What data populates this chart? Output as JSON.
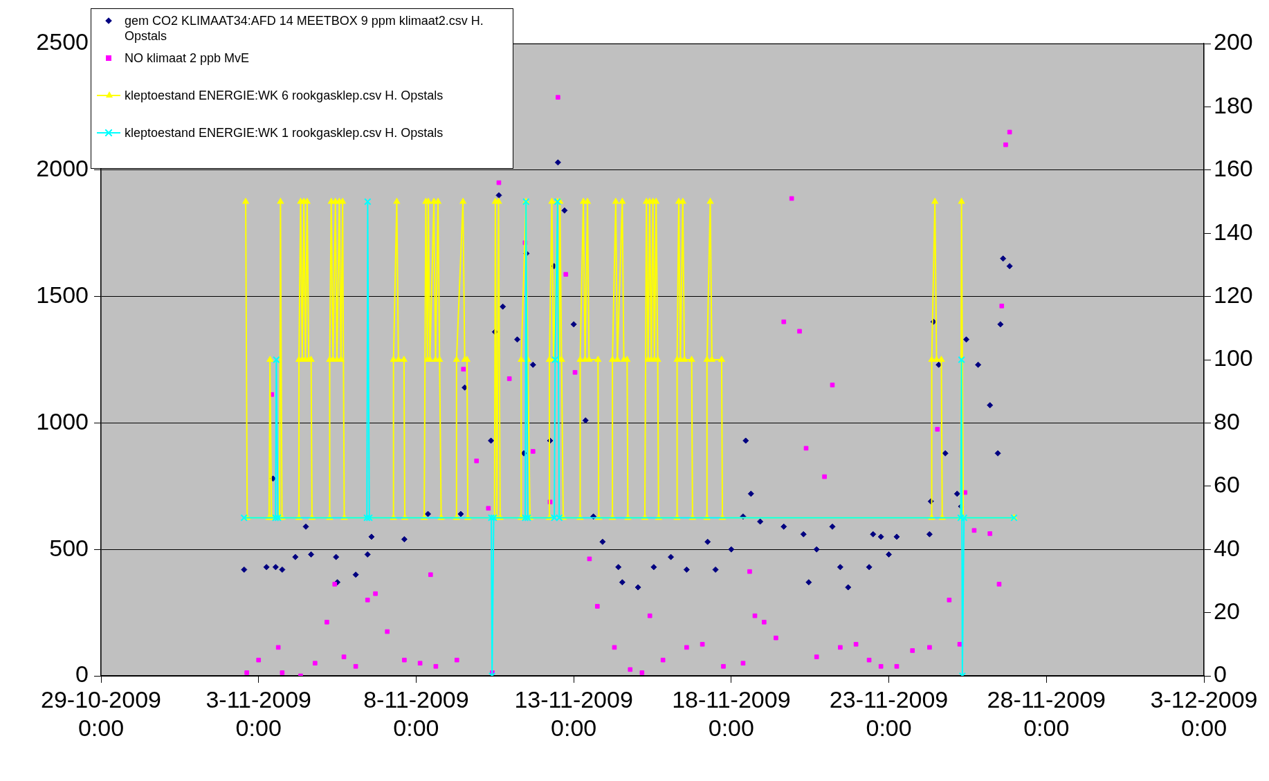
{
  "chart_data": {
    "type": "scatter",
    "legend": "top left",
    "grid": "y",
    "xlim": [
      "2009-10-29T00:00",
      "2009-12-03T00:00"
    ],
    "xticks": [
      {
        "value": "2009-10-29T00:00",
        "label": "29-10-2009 0:00"
      },
      {
        "value": "2009-11-03T00:00",
        "label": "3-11-2009 0:00"
      },
      {
        "value": "2009-11-08T00:00",
        "label": "8-11-2009 0:00"
      },
      {
        "value": "2009-11-13T00:00",
        "label": "13-11-2009 0:00"
      },
      {
        "value": "2009-11-18T00:00",
        "label": "18-11-2009 0:00"
      },
      {
        "value": "2009-11-23T00:00",
        "label": "23-11-2009 0:00"
      },
      {
        "value": "2009-11-28T00:00",
        "label": "28-11-2009 0:00"
      },
      {
        "value": "2009-12-03T00:00",
        "label": "3-12-2009 0:00"
      }
    ],
    "ylim": [
      0,
      2500
    ],
    "yticks": [
      0,
      500,
      1000,
      1500,
      2000,
      2500
    ],
    "y2lim": [
      0,
      200
    ],
    "y2ticks": [
      0,
      20,
      40,
      60,
      80,
      100,
      120,
      140,
      160,
      180,
      200
    ],
    "series": [
      {
        "name": "gem CO2 KLIMAAT34:AFD 14 MEETBOX 9 ppm klimaat2.csv H. Opstals",
        "color": "#000080",
        "marker": "diamond",
        "x": [
          "2009-11-02T13:00",
          "2009-11-03T06:00",
          "2009-11-03T11:00",
          "2009-11-03T13:00",
          "2009-11-03T18:00",
          "2009-11-04T04:00",
          "2009-11-04T12:00",
          "2009-11-04T16:00",
          "2009-11-05T11:00",
          "2009-11-05T12:00",
          "2009-11-06T02:00",
          "2009-11-06T11:00",
          "2009-11-06T14:00",
          "2009-11-07T15:00",
          "2009-11-08T09:00",
          "2009-11-09T10:00",
          "2009-11-09T13:00",
          "2009-11-10T09:00",
          "2009-11-10T12:00",
          "2009-11-10T15:00",
          "2009-11-10T18:00",
          "2009-11-11T05:00",
          "2009-11-11T10:00",
          "2009-11-11T12:00",
          "2009-11-11T17:00",
          "2009-11-12T06:00",
          "2009-11-12T09:00",
          "2009-11-12T12:00",
          "2009-11-12T17:00",
          "2009-11-13T00:00",
          "2009-11-13T09:00",
          "2009-11-13T15:00",
          "2009-11-13T22:00",
          "2009-11-14T10:00",
          "2009-11-14T13:00",
          "2009-11-15T01:00",
          "2009-11-15T13:00",
          "2009-11-16T02:00",
          "2009-11-16T14:00",
          "2009-11-17T06:00",
          "2009-11-17T12:00",
          "2009-11-18T00:00",
          "2009-11-18T09:00",
          "2009-11-18T11:00",
          "2009-11-18T15:00",
          "2009-11-18T22:00",
          "2009-11-19T16:00",
          "2009-11-20T07:00",
          "2009-11-20T11:00",
          "2009-11-20T17:00",
          "2009-11-21T05:00",
          "2009-11-21T11:00",
          "2009-11-21T17:00",
          "2009-11-22T09:00",
          "2009-11-22T12:00",
          "2009-11-22T18:00",
          "2009-11-23T00:00",
          "2009-11-23T06:00",
          "2009-11-24T07:00",
          "2009-11-24T08:00",
          "2009-11-24T10:00",
          "2009-11-24T14:00",
          "2009-11-24T19:00",
          "2009-11-25T04:00",
          "2009-11-25T07:00",
          "2009-11-25T11:00",
          "2009-11-25T20:00",
          "2009-11-26T05:00",
          "2009-11-26T11:00",
          "2009-11-26T13:00",
          "2009-11-26T15:00",
          "2009-11-26T20:00"
        ],
        "values": [
          420,
          430,
          780,
          430,
          420,
          470,
          590,
          480,
          470,
          370,
          400,
          480,
          550,
          540,
          640,
          640,
          1140,
          930,
          1360,
          1900,
          1460,
          1330,
          880,
          1670,
          1230,
          930,
          1620,
          2030,
          1840,
          1390,
          1010,
          630,
          530,
          430,
          370,
          350,
          430,
          470,
          420,
          530,
          420,
          500,
          630,
          930,
          720,
          610,
          590,
          560,
          370,
          500,
          590,
          430,
          350,
          430,
          560,
          550,
          480,
          550,
          560,
          690,
          1400,
          1230,
          880,
          720,
          670,
          1330,
          1230,
          1070,
          880,
          1390,
          1650,
          1620
        ]
      },
      {
        "name": "NO klimaat 2 ppb MvE",
        "color": "#ff00ff",
        "type": "scatter",
        "marker": "square",
        "axis": "y2",
        "x": [
          "2009-11-02T15:00",
          "2009-11-03T00:00",
          "2009-11-03T10:00",
          "2009-11-03T15:00",
          "2009-11-03T18:00",
          "2009-11-04T08:00",
          "2009-11-04T19:00",
          "2009-11-05T04:00",
          "2009-11-05T10:00",
          "2009-11-05T17:00",
          "2009-11-06T02:00",
          "2009-11-06T11:00",
          "2009-11-06T17:00",
          "2009-11-07T02:00",
          "2009-11-07T15:00",
          "2009-11-08T03:00",
          "2009-11-08T11:00",
          "2009-11-08T15:00",
          "2009-11-09T07:00",
          "2009-11-09T12:00",
          "2009-11-09T22:00",
          "2009-11-10T07:00",
          "2009-11-10T10:00",
          "2009-11-10T15:00",
          "2009-11-10T23:00",
          "2009-11-11T11:00",
          "2009-11-11T17:00",
          "2009-11-12T06:00",
          "2009-11-12T12:00",
          "2009-11-12T18:00",
          "2009-11-13T01:00",
          "2009-11-13T12:00",
          "2009-11-13T18:00",
          "2009-11-14T07:00",
          "2009-11-14T19:00",
          "2009-11-15T04:00",
          "2009-11-15T10:00",
          "2009-11-15T20:00",
          "2009-11-16T14:00",
          "2009-11-17T02:00",
          "2009-11-17T18:00",
          "2009-11-18T09:00",
          "2009-11-18T14:00",
          "2009-11-18T18:00",
          "2009-11-19T01:00",
          "2009-11-19T10:00",
          "2009-11-19T16:00",
          "2009-11-19T22:00",
          "2009-11-20T04:00",
          "2009-11-20T09:00",
          "2009-11-20T17:00",
          "2009-11-20T23:00",
          "2009-11-21T05:00",
          "2009-11-21T11:00",
          "2009-11-21T23:00",
          "2009-11-22T09:00",
          "2009-11-22T18:00",
          "2009-11-23T06:00",
          "2009-11-23T18:00",
          "2009-11-24T07:00",
          "2009-11-24T13:00",
          "2009-11-24T22:00",
          "2009-11-25T06:00",
          "2009-11-25T10:00",
          "2009-11-25T17:00",
          "2009-11-26T05:00",
          "2009-11-26T12:00",
          "2009-11-26T14:00",
          "2009-11-26T17:00",
          "2009-11-26T20:00"
        ],
        "values": [
          1,
          5,
          89,
          9,
          1,
          0,
          4,
          17,
          29,
          6,
          3,
          24,
          26,
          14,
          5,
          4,
          32,
          3,
          5,
          97,
          68,
          53,
          1,
          156,
          94,
          137,
          71,
          55,
          183,
          127,
          96,
          37,
          22,
          9,
          2,
          1,
          19,
          5,
          9,
          10,
          3,
          4,
          33,
          19,
          17,
          12,
          112,
          151,
          109,
          72,
          6,
          63,
          92,
          9,
          10,
          5,
          3,
          3,
          8,
          9,
          78,
          24,
          10,
          58,
          46,
          45,
          29,
          117,
          168,
          172
        ]
      },
      {
        "name": "kleptoestand ENERGIE:WK 6 rookgasklep.csv H. Opstals",
        "color": "#ffff00",
        "type": "line",
        "marker": "triangle",
        "axis": "y2",
        "x": [
          "2009-11-02T14:10",
          "2009-11-02T15:20",
          "2009-11-03T08:00",
          "2009-11-03T08:40",
          "2009-11-03T09:50",
          "2009-11-03T16:00",
          "2009-11-03T16:40",
          "2009-11-03T17:50",
          "2009-11-04T06:45",
          "2009-11-04T06:45",
          "2009-11-04T08:00",
          "2009-11-04T09:15",
          "2009-11-04T10:30",
          "2009-11-04T11:40",
          "2009-11-04T13:00",
          "2009-11-04T14:10",
          "2009-11-04T16:00",
          "2009-11-04T16:40",
          "2009-11-05T06:10",
          "2009-11-05T06:10",
          "2009-11-05T07:20",
          "2009-11-05T08:40",
          "2009-11-05T10:30",
          "2009-11-05T11:40",
          "2009-11-05T13:30",
          "2009-11-05T14:45",
          "2009-11-05T16:00",
          "2009-11-05T17:15",
          "2009-11-07T06:45",
          "2009-11-07T06:45",
          "2009-11-07T09:15",
          "2009-11-07T10:30",
          "2009-11-07T14:45",
          "2009-11-07T15:20",
          "2009-11-08T06:10",
          "2009-11-08T07:20",
          "2009-11-08T08:40",
          "2009-11-08T09:15",
          "2009-11-08T10:30",
          "2009-11-08T13:30",
          "2009-11-08T14:45",
          "2009-11-08T16:40",
          "2009-11-08T17:50",
          "2009-11-08T19:05",
          "2009-11-09T06:45",
          "2009-11-09T06:45",
          "2009-11-09T11:40",
          "2009-11-09T13:00",
          "2009-11-09T14:45",
          "2009-11-09T15:20",
          "2009-11-10T11:40",
          "2009-11-10T12:20",
          "2009-11-10T13:30",
          "2009-11-10T14:45",
          "2009-11-10T16:00",
          "2009-11-11T08:00",
          "2009-11-11T08:00",
          "2009-11-11T11:40",
          "2009-11-11T13:00",
          "2009-11-11T14:45",
          "2009-11-12T05:30",
          "2009-11-12T05:30",
          "2009-11-12T07:20",
          "2009-11-12T08:40",
          "2009-11-12T11:40",
          "2009-11-12T13:00",
          "2009-11-12T13:30",
          "2009-11-12T14:45",
          "2009-11-12T16:00",
          "2009-11-13T04:55",
          "2009-11-13T04:55",
          "2009-11-13T07:20",
          "2009-11-13T08:40",
          "2009-11-13T10:30",
          "2009-11-13T11:40",
          "2009-11-13T18:30",
          "2009-11-13T19:05",
          "2009-11-14T05:30",
          "2009-11-14T05:30",
          "2009-11-14T08:00",
          "2009-11-14T09:15",
          "2009-11-14T13:00",
          "2009-11-14T14:10",
          "2009-11-14T16:40",
          "2009-11-14T17:15",
          "2009-11-15T06:10",
          "2009-11-15T07:20",
          "2009-11-15T08:40",
          "2009-11-15T09:50",
          "2009-11-15T11:05",
          "2009-11-15T12:20",
          "2009-11-15T13:30",
          "2009-11-15T14:45",
          "2009-11-15T16:00",
          "2009-11-15T16:40",
          "2009-11-16T06:45",
          "2009-11-16T06:45",
          "2009-11-16T08:00",
          "2009-11-16T09:15",
          "2009-11-16T11:05",
          "2009-11-16T12:20",
          "2009-11-16T17:50",
          "2009-11-16T18:30",
          "2009-11-17T05:30",
          "2009-11-17T05:30",
          "2009-11-17T08:00",
          "2009-11-17T09:15",
          "2009-11-17T16:40",
          "2009-11-17T17:15",
          "2009-11-24T08:40",
          "2009-11-24T08:40",
          "2009-11-24T11:05",
          "2009-11-24T12:20",
          "2009-11-24T16:00",
          "2009-11-24T16:40",
          "2009-11-25T06:45",
          "2009-11-25T07:20",
          "2009-11-25T08:40",
          "2009-11-26T23:20"
        ],
        "values": [
          150,
          50,
          50,
          100,
          50,
          50,
          150,
          50,
          50,
          100,
          150,
          100,
          150,
          100,
          150,
          100,
          100,
          50,
          50,
          100,
          150,
          100,
          150,
          100,
          150,
          100,
          150,
          50,
          50,
          100,
          150,
          100,
          100,
          50,
          50,
          150,
          100,
          150,
          100,
          150,
          100,
          150,
          100,
          50,
          50,
          100,
          150,
          100,
          100,
          50,
          50,
          150,
          50,
          150,
          50,
          50,
          100,
          150,
          100,
          50,
          50,
          100,
          150,
          100,
          150,
          100,
          150,
          100,
          50,
          50,
          100,
          150,
          100,
          150,
          100,
          100,
          50,
          50,
          100,
          150,
          100,
          150,
          100,
          100,
          50,
          50,
          150,
          100,
          150,
          100,
          150,
          100,
          150,
          100,
          50,
          50,
          100,
          150,
          100,
          150,
          100,
          100,
          50,
          50,
          100,
          150,
          100,
          100,
          50,
          50,
          100,
          150,
          100,
          100,
          50,
          50,
          150,
          50,
          50
        ]
      },
      {
        "name": "kleptoestand ENERGIE:WK 1 rookgasklep.csv H. Opstals",
        "color": "#00ffff",
        "type": "line",
        "marker": "cross",
        "axis": "y2",
        "x": [
          "2009-11-02T12:55",
          "2009-11-03T12:55",
          "2009-11-03T13:30",
          "2009-11-03T14:45",
          "2009-11-06T10:30",
          "2009-11-06T11:05",
          "2009-11-06T12:20",
          "2009-11-10T09:15",
          "2009-11-10T09:50",
          "2009-11-10T11:05",
          "2009-11-11T11:05",
          "2009-11-11T11:40",
          "2009-11-11T13:00",
          "2009-11-12T09:15",
          "2009-11-12T09:50",
          "2009-11-12T11:40",
          "2009-11-12T13:00",
          "2009-11-25T06:45",
          "2009-11-25T07:20",
          "2009-11-25T08:00",
          "2009-11-25T09:15",
          "2009-11-26T23:20"
        ],
        "values": [
          50,
          50,
          100,
          50,
          50,
          150,
          50,
          50,
          0,
          50,
          50,
          150,
          50,
          50,
          100,
          150,
          50,
          50,
          100,
          0,
          50,
          50
        ]
      }
    ]
  }
}
